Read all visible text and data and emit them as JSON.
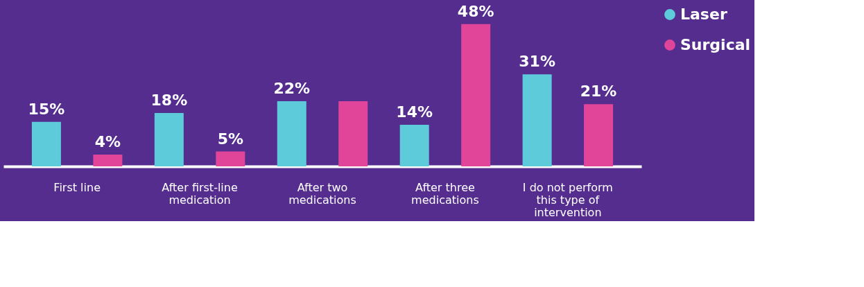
{
  "chart_data": {
    "type": "bar",
    "categories": [
      "First line",
      "After first-line medication",
      "After two medications",
      "After three medications",
      "I do not perform this type of intervention"
    ],
    "series": [
      {
        "name": "Laser",
        "color": "#5ecbdb",
        "values": [
          15,
          18,
          22,
          14,
          31
        ],
        "value_labels": [
          "15%",
          "18%",
          "22%",
          "14%",
          "31%"
        ]
      },
      {
        "name": "Surgical",
        "color": "#e0459a",
        "values": [
          4,
          5,
          22,
          48,
          21
        ],
        "value_labels": [
          "4%",
          "5%",
          null,
          "48%",
          "21%"
        ]
      }
    ],
    "legend": "right",
    "grid": false
  }
}
